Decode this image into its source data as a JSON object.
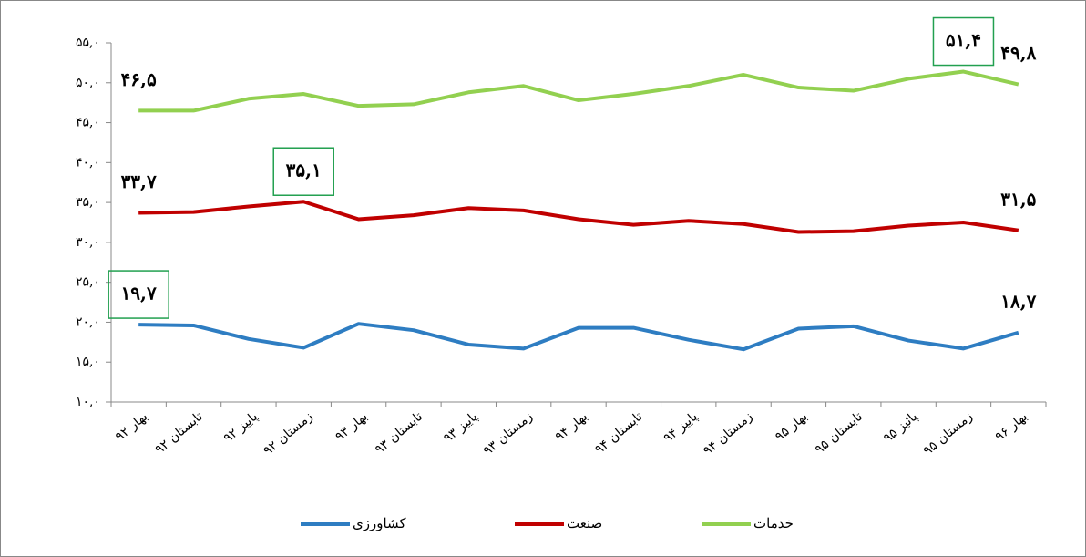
{
  "chart_data": {
    "type": "line",
    "categories": [
      "بهار ۹۲",
      "تابستان ۹۲",
      "پاییز ۹۲",
      "زمستان ۹۲",
      "بهار ۹۳",
      "تابستان ۹۳",
      "پاییز ۹۳",
      "زمستان ۹۳",
      "بهار ۹۴",
      "تابستان ۹۴",
      "پاییز ۹۴",
      "زمستان ۹۴",
      "بهار ۹۵",
      "تابستان ۹۵",
      "پائیز ۹۵",
      "زمستان ۹۵",
      "بهار ۹۶"
    ],
    "series": [
      {
        "name": "کشاورزی",
        "color": "#2e7dc2",
        "values": [
          19.7,
          19.6,
          17.9,
          16.8,
          19.8,
          19.0,
          17.2,
          16.7,
          19.3,
          19.3,
          17.8,
          16.6,
          19.2,
          19.5,
          17.7,
          16.7,
          18.7
        ],
        "value_labels": [
          "۱۹,۷",
          null,
          null,
          null,
          null,
          null,
          null,
          null,
          null,
          null,
          null,
          null,
          null,
          null,
          null,
          null,
          "۱۸,۷"
        ],
        "highlighted": [
          0
        ]
      },
      {
        "name": "صنعت",
        "color": "#c00000",
        "values": [
          33.7,
          33.8,
          34.5,
          35.1,
          32.9,
          33.4,
          34.3,
          34.0,
          32.9,
          32.2,
          32.7,
          32.3,
          31.3,
          31.4,
          32.1,
          32.5,
          31.5
        ],
        "value_labels": [
          "۳۳,۷",
          null,
          null,
          "۳۵,۱",
          null,
          null,
          null,
          null,
          null,
          null,
          null,
          null,
          null,
          null,
          null,
          null,
          "۳۱,۵"
        ],
        "highlighted": [
          3
        ]
      },
      {
        "name": "خدمات",
        "color": "#92d050",
        "values": [
          46.5,
          46.5,
          48.0,
          48.6,
          47.1,
          47.3,
          48.8,
          49.6,
          47.8,
          48.6,
          49.6,
          51.0,
          49.4,
          49.0,
          50.5,
          51.4,
          49.8
        ],
        "value_labels": [
          "۴۶,۵",
          null,
          null,
          null,
          null,
          null,
          null,
          null,
          null,
          null,
          null,
          null,
          null,
          null,
          null,
          "۵۱,۴",
          "۴۹,۸"
        ],
        "highlighted": [
          15
        ]
      }
    ],
    "ylim": [
      10,
      55
    ],
    "yticks": [
      {
        "value": 10,
        "label": "۱۰,۰"
      },
      {
        "value": 15,
        "label": "۱۵,۰"
      },
      {
        "value": 20,
        "label": "۲۰,۰"
      },
      {
        "value": 25,
        "label": "۲۵,۰"
      },
      {
        "value": 30,
        "label": "۳۰,۰"
      },
      {
        "value": 35,
        "label": "۳۵,۰"
      },
      {
        "value": 40,
        "label": "۴۰,۰"
      },
      {
        "value": 45,
        "label": "۴۵,۰"
      },
      {
        "value": 50,
        "label": "۵۰,۰"
      },
      {
        "value": 55,
        "label": "۵۵,۰"
      }
    ],
    "grid": false,
    "legend": "bottom"
  }
}
